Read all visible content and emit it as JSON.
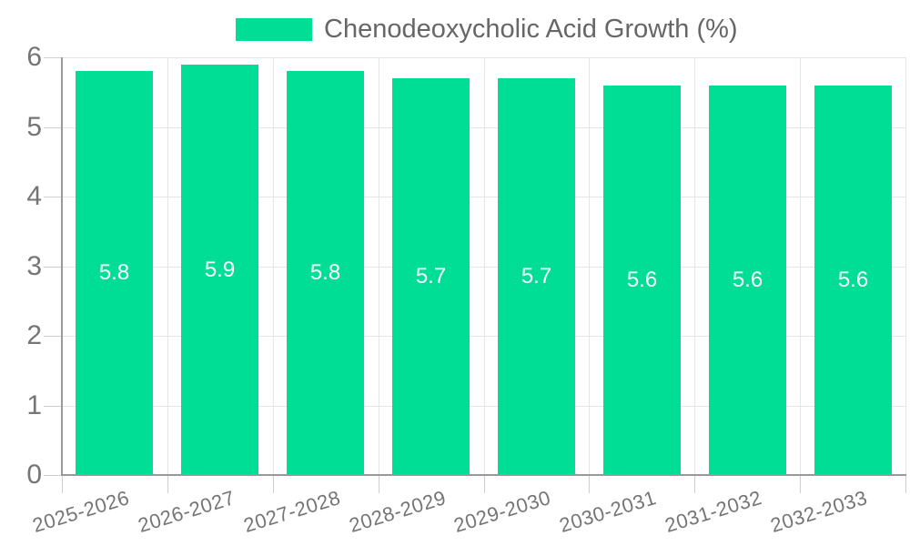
{
  "legend": {
    "label": "Chenodeoxycholic Acid Growth (%)"
  },
  "colors": {
    "bar": "#00DE95",
    "grid": "#E5E5E5",
    "axis": "#999999",
    "tick": "#CFCFCF",
    "axis_label_text": "#757575",
    "legend_text": "#666666",
    "bar_label_text": "#FFFFFF",
    "background": "#FFFFFF"
  },
  "chart_data": {
    "type": "bar",
    "title": "",
    "xlabel": "",
    "ylabel": "",
    "categories": [
      "2025-2026",
      "2026-2027",
      "2027-2028",
      "2028-2029",
      "2029-2030",
      "2030-2031",
      "2031-2032",
      "2032-2033"
    ],
    "series": [
      {
        "name": "Chenodeoxycholic Acid Growth (%)",
        "values": [
          5.8,
          5.9,
          5.8,
          5.7,
          5.7,
          5.6,
          5.6,
          5.6
        ]
      }
    ],
    "data_labels": [
      "5.8",
      "5.9",
      "5.8",
      "5.7",
      "5.7",
      "5.6",
      "5.6",
      "5.6"
    ],
    "ylim": [
      0,
      6
    ],
    "y_ticks": [
      0,
      1,
      2,
      3,
      4,
      5,
      6
    ],
    "grid": true,
    "legend_position": "top-center",
    "data_label_position": "inside-middle",
    "x_label_rotation_deg": -17
  }
}
